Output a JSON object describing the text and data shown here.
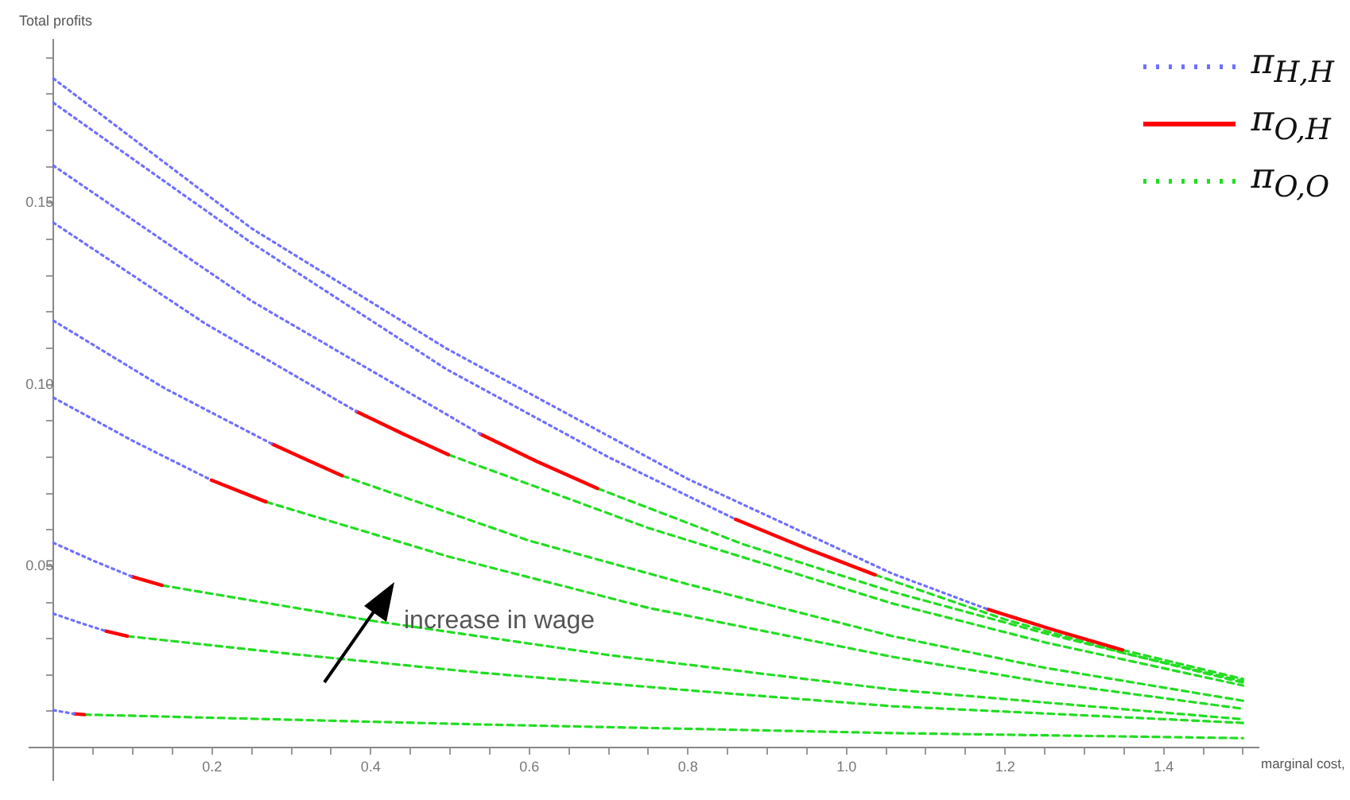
{
  "chart_data": {
    "type": "line",
    "xlabel": "marginal cost,",
    "ylabel": "Total profits",
    "annotations": [
      "increase in wage"
    ],
    "xlim": [
      -0.03,
      1.52
    ],
    "ylim": [
      -0.009,
      0.195
    ],
    "xticks": [
      {
        "value": 0.05,
        "label": null
      },
      {
        "value": 0.1,
        "label": null
      },
      {
        "value": 0.15,
        "label": null
      },
      0.2,
      {
        "value": 0.25,
        "label": null
      },
      {
        "value": 0.3,
        "label": null
      },
      {
        "value": 0.35,
        "label": null
      },
      0.4,
      {
        "value": 0.45,
        "label": null
      },
      {
        "value": 0.5,
        "label": null
      },
      {
        "value": 0.55,
        "label": null
      },
      0.6,
      {
        "value": 0.65,
        "label": null
      },
      {
        "value": 0.7,
        "label": null
      },
      {
        "value": 0.75,
        "label": null
      },
      0.8,
      {
        "value": 0.85,
        "label": null
      },
      {
        "value": 0.9,
        "label": null
      },
      {
        "value": 0.95,
        "label": null
      },
      {
        "value": 1.0,
        "label": "1.0"
      },
      {
        "value": 1.05,
        "label": null
      },
      {
        "value": 1.1,
        "label": null
      },
      {
        "value": 1.15,
        "label": null
      },
      1.2,
      {
        "value": 1.25,
        "label": null
      },
      {
        "value": 1.3,
        "label": null
      },
      {
        "value": 1.35,
        "label": null
      },
      1.4,
      {
        "value": 1.45,
        "label": null
      },
      {
        "value": 1.5,
        "label": null
      }
    ],
    "yticks": [
      {
        "value": 0.01,
        "label": null
      },
      {
        "value": 0.02,
        "label": null
      },
      {
        "value": 0.03,
        "label": null
      },
      {
        "value": 0.04,
        "label": null
      },
      0.05,
      {
        "value": 0.06,
        "label": null
      },
      {
        "value": 0.07,
        "label": null
      },
      {
        "value": 0.08,
        "label": null
      },
      {
        "value": 0.09,
        "label": null
      },
      {
        "value": 0.1,
        "label": "0.10"
      },
      {
        "value": 0.11,
        "label": null
      },
      {
        "value": 0.12,
        "label": null
      },
      {
        "value": 0.13,
        "label": null
      },
      {
        "value": 0.14,
        "label": null
      },
      0.15,
      {
        "value": 0.16,
        "label": null
      },
      {
        "value": 0.17,
        "label": null
      },
      {
        "value": 0.18,
        "label": null
      },
      {
        "value": 0.19,
        "label": null
      }
    ],
    "grid": false,
    "legend": "top right",
    "marker": "none",
    "series": [
      {
        "name": "π$_{H,H}$",
        "color": "#7070ff",
        "line_style": "dotted",
        "x": [
          0,
          0.25,
          0.495,
          0.8,
          1.058,
          1.178
        ],
        "values": [
          0.1843,
          0.143,
          0.11,
          0.074,
          0.0479,
          0.0381
        ]
      },
      {
        "name": "π$_{O,H}$",
        "color": "#ff0000",
        "line_style": "solid",
        "x": [
          1.178,
          1.26,
          1.348
        ],
        "values": [
          0.0381,
          0.0325,
          0.0269
        ]
      },
      {
        "name": "π$_{O,O}$",
        "color": "#22dd22",
        "line_style": "dashed",
        "x": [
          1.348,
          1.5
        ],
        "values": [
          0.0269,
          0.0189
        ]
      },
      {
        "color": "#7070ff",
        "line_style": "dotted",
        "x": [
          0,
          0.25,
          0.495,
          0.7,
          0.86
        ],
        "values": [
          0.1776,
          0.139,
          0.1043,
          0.08,
          0.0629
        ]
      },
      {
        "color": "#ff0000",
        "line_style": "solid",
        "x": [
          0.86,
          0.95,
          1.036
        ],
        "values": [
          0.0629,
          0.0548,
          0.0476
        ]
      },
      {
        "color": "#22dd22",
        "line_style": "dashed",
        "x": [
          1.036,
          1.2,
          1.35,
          1.5
        ],
        "values": [
          0.0476,
          0.0353,
          0.026,
          0.0183
        ]
      },
      {
        "color": "#7070ff",
        "line_style": "dotted",
        "x": [
          0,
          0.25,
          0.538
        ],
        "values": [
          0.1603,
          0.123,
          0.0864
        ]
      },
      {
        "color": "#ff0000",
        "line_style": "solid",
        "x": [
          0.538,
          0.61,
          0.686
        ],
        "values": [
          0.0864,
          0.0788,
          0.0714
        ]
      },
      {
        "color": "#22dd22",
        "line_style": "dashed",
        "x": [
          0.686,
          0.87,
          1.058,
          1.25,
          1.5
        ],
        "values": [
          0.0714,
          0.056,
          0.0429,
          0.0315,
          0.0179
        ]
      },
      {
        "color": "#7070ff",
        "line_style": "dotted",
        "x": [
          0,
          0.19,
          0.382
        ],
        "values": [
          0.1446,
          0.117,
          0.0926
        ]
      },
      {
        "color": "#ff0000",
        "line_style": "solid",
        "x": [
          0.382,
          0.44,
          0.498
        ],
        "values": [
          0.0926,
          0.0865,
          0.0807
        ]
      },
      {
        "color": "#22dd22",
        "line_style": "dashed",
        "x": [
          0.498,
          0.75,
          1.058,
          1.25,
          1.5
        ],
        "values": [
          0.0807,
          0.0605,
          0.0397,
          0.029,
          0.0171
        ]
      },
      {
        "color": "#7070ff",
        "line_style": "dotted",
        "x": [
          0,
          0.14,
          0.276
        ],
        "values": [
          0.1176,
          0.099,
          0.0836
        ]
      },
      {
        "color": "#ff0000",
        "line_style": "solid",
        "x": [
          0.276,
          0.32,
          0.364
        ],
        "values": [
          0.0836,
          0.0792,
          0.0749
        ]
      },
      {
        "color": "#22dd22",
        "line_style": "dashed",
        "x": [
          0.364,
          0.6,
          0.8,
          1.058,
          1.25,
          1.5
        ],
        "values": [
          0.0749,
          0.057,
          0.045,
          0.0307,
          0.022,
          0.0129
        ]
      },
      {
        "color": "#7070ff",
        "line_style": "dotted",
        "x": [
          0,
          0.1,
          0.199
        ],
        "values": [
          0.0964,
          0.0845,
          0.0737
        ]
      },
      {
        "color": "#ff0000",
        "line_style": "solid",
        "x": [
          0.199,
          0.268
        ],
        "values": [
          0.0737,
          0.0677
        ]
      },
      {
        "color": "#22dd22",
        "line_style": "dashed",
        "x": [
          0.268,
          0.5,
          0.75,
          1.058,
          1.25,
          1.5
        ],
        "values": [
          0.0677,
          0.0525,
          0.0385,
          0.025,
          0.018,
          0.0107
        ]
      },
      {
        "color": "#7070ff",
        "line_style": "dotted",
        "x": [
          0,
          0.05,
          0.099
        ],
        "values": [
          0.0564,
          0.0515,
          0.0471
        ]
      },
      {
        "color": "#ff0000",
        "line_style": "solid",
        "x": [
          0.099,
          0.137
        ],
        "values": [
          0.0471,
          0.0447
        ]
      },
      {
        "color": "#22dd22",
        "line_style": "dashed",
        "x": [
          0.137,
          0.4,
          0.7,
          1.058,
          1.5
        ],
        "values": [
          0.0447,
          0.035,
          0.0255,
          0.016,
          0.0078
        ]
      },
      {
        "color": "#7070ff",
        "line_style": "dotted",
        "x": [
          0,
          0.033,
          0.066
        ],
        "values": [
          0.0369,
          0.0344,
          0.0321
        ]
      },
      {
        "color": "#ff0000",
        "line_style": "solid",
        "x": [
          0.066,
          0.093
        ],
        "values": [
          0.0321,
          0.0307
        ]
      },
      {
        "color": "#22dd22",
        "line_style": "dashed",
        "x": [
          0.093,
          0.3,
          0.535,
          0.8,
          1.058,
          1.5
        ],
        "values": [
          0.0307,
          0.0258,
          0.0207,
          0.0158,
          0.0114,
          0.0068
        ]
      },
      {
        "color": "#7070ff",
        "line_style": "dotted",
        "x": [
          0,
          0.026
        ],
        "values": [
          0.0103,
          0.0093
        ]
      },
      {
        "color": "#ff0000",
        "line_style": "solid",
        "x": [
          0.026,
          0.039
        ],
        "values": [
          0.0093,
          0.0091
        ]
      },
      {
        "color": "#22dd22",
        "line_style": "dashed",
        "x": [
          0.039,
          0.535,
          1.058,
          1.5
        ],
        "values": [
          0.0091,
          0.0064,
          0.004,
          0.0026
        ]
      }
    ]
  }
}
